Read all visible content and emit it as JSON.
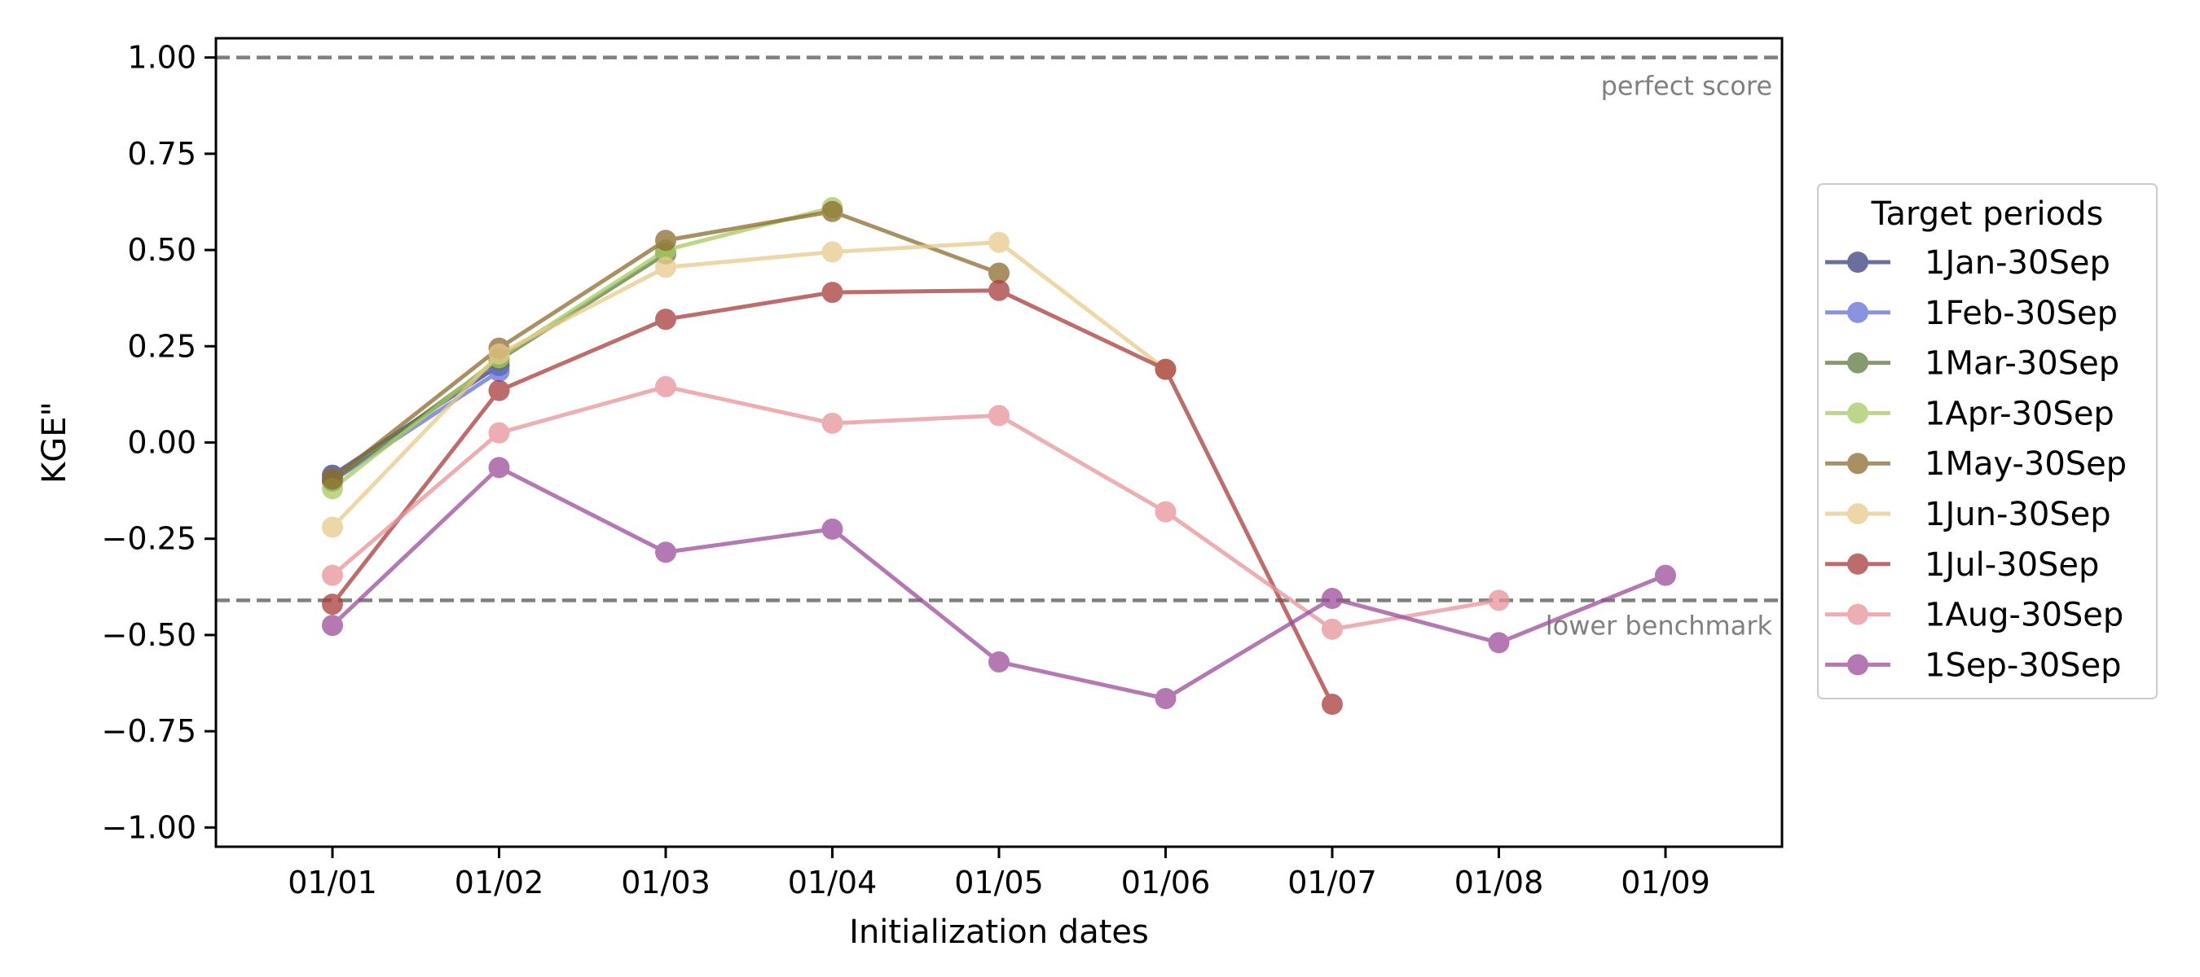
{
  "chart_data": {
    "type": "line",
    "xlabel": "Initialization dates",
    "ylabel": "KGE\"",
    "categories": [
      "01/01",
      "01/02",
      "01/03",
      "01/04",
      "01/05",
      "01/06",
      "01/07",
      "01/08",
      "01/09"
    ],
    "ylim": [
      -1.05,
      1.05
    ],
    "yticks": [
      -1.0,
      -0.75,
      -0.5,
      -0.25,
      0.0,
      0.25,
      0.5,
      0.75,
      1.0
    ],
    "ytick_labels": [
      "−1.00",
      "−0.75",
      "−0.50",
      "−0.25",
      "0.00",
      "0.25",
      "0.50",
      "0.75",
      "1.00"
    ],
    "grid": false,
    "reference_lines": [
      {
        "label": "perfect score",
        "y": 1.0,
        "color": "#808080",
        "style": "dashed"
      },
      {
        "label": "lower benchmark",
        "y": -0.41,
        "color": "#808080",
        "style": "dashed"
      }
    ],
    "legend": {
      "title": "Target periods",
      "placement": "right-outside"
    },
    "series": [
      {
        "name": "1Jan-30Sep",
        "color": "#3b3f7e",
        "values": [
          -0.085,
          0.2,
          null,
          null,
          null,
          null,
          null,
          null,
          null
        ]
      },
      {
        "name": "1Feb-30Sep",
        "color": "#6470d6",
        "values": [
          -0.1,
          0.185,
          null,
          null,
          null,
          null,
          null,
          null,
          null
        ]
      },
      {
        "name": "1Mar-30Sep",
        "color": "#5e7a3d",
        "values": [
          -0.1,
          0.215,
          0.49,
          null,
          null,
          null,
          null,
          null,
          null
        ]
      },
      {
        "name": "1Apr-30Sep",
        "color": "#a6ca62",
        "values": [
          -0.12,
          0.22,
          0.5,
          0.61,
          null,
          null,
          null,
          null,
          null
        ]
      },
      {
        "name": "1May-30Sep",
        "color": "#8d6b2e",
        "values": [
          -0.095,
          0.245,
          0.525,
          0.6,
          0.44,
          null,
          null,
          null,
          null
        ]
      },
      {
        "name": "1Jun-30Sep",
        "color": "#e8c98c",
        "values": [
          -0.22,
          0.23,
          0.455,
          0.495,
          0.52,
          0.19,
          null,
          null,
          null
        ]
      },
      {
        "name": "1Jul-30Sep",
        "color": "#a83c3c",
        "values": [
          -0.42,
          0.135,
          0.32,
          0.39,
          0.395,
          0.19,
          -0.68,
          null,
          null
        ]
      },
      {
        "name": "1Aug-30Sep",
        "color": "#e69499",
        "values": [
          -0.345,
          0.025,
          0.145,
          0.05,
          0.07,
          -0.18,
          -0.485,
          -0.41,
          null
        ]
      },
      {
        "name": "1Sep-30Sep",
        "color": "#9c4b9a",
        "values": [
          -0.475,
          -0.065,
          -0.285,
          -0.225,
          -0.57,
          -0.665,
          -0.405,
          -0.52,
          -0.345
        ]
      }
    ]
  }
}
